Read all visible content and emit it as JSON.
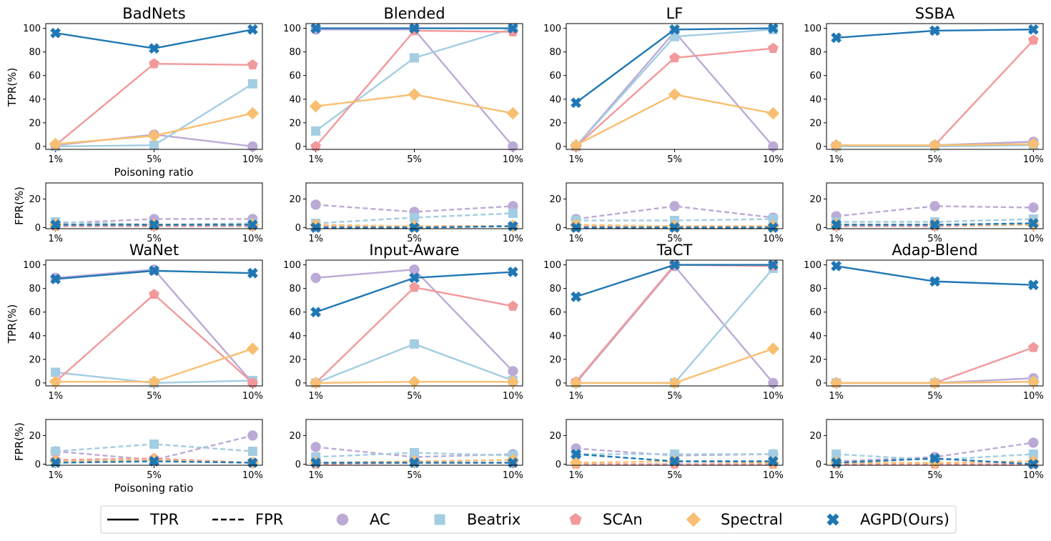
{
  "chart_data": {
    "type": "line",
    "categories": [
      "1%",
      "5%",
      "10%"
    ],
    "xlabel": "Poisoning ratio",
    "ylabel_tpr": "TPR(%)",
    "ylabel_fpr": "FPR(%)",
    "tpr_ylim": [
      0,
      100
    ],
    "tpr_yticks": [
      "0",
      "20",
      "40",
      "60",
      "80",
      "100"
    ],
    "fpr_ylim": [
      0,
      30
    ],
    "fpr_yticks": [
      "0",
      "20"
    ],
    "colors": {
      "AC": "#bcaad6",
      "Beatrix": "#a3cde3",
      "SCAn": "#f2999b",
      "Spectral": "#f8bf72",
      "AGPD(Ours)": "#1f77b4"
    },
    "legend": {
      "placement": "bottom-center",
      "items": [
        {
          "label": "TPR",
          "kind": "solid-line"
        },
        {
          "label": "FPR",
          "kind": "dashed-line"
        },
        {
          "label": "AC",
          "kind": "marker",
          "marker": "circle",
          "color": "#bcaad6"
        },
        {
          "label": "Beatrix",
          "kind": "marker",
          "marker": "square",
          "color": "#a3cde3"
        },
        {
          "label": "SCAn",
          "kind": "marker",
          "marker": "pentagon",
          "color": "#f2999b"
        },
        {
          "label": "Spectral",
          "kind": "marker",
          "marker": "diamond",
          "color": "#f8bf72"
        },
        {
          "label": "AGPD(Ours)",
          "kind": "marker",
          "marker": "x",
          "color": "#1f77b4"
        }
      ]
    },
    "panels": [
      {
        "title": "BadNets",
        "tpr": {
          "AC": [
            1,
            10,
            0
          ],
          "Beatrix": [
            0,
            1,
            53
          ],
          "SCAn": [
            1,
            70,
            69
          ],
          "Spectral": [
            2,
            9,
            28
          ],
          "AGPD(Ours)": [
            96,
            83,
            99
          ]
        },
        "fpr": {
          "AC": [
            3,
            6,
            6
          ],
          "Beatrix": [
            4,
            2,
            3
          ],
          "SCAn": [
            1,
            1,
            1
          ],
          "Spectral": [
            2,
            2,
            2
          ],
          "AGPD(Ours)": [
            2,
            2,
            2
          ]
        }
      },
      {
        "title": "Blended",
        "tpr": {
          "AC": [
            99,
            99,
            0
          ],
          "Beatrix": [
            13,
            75,
            100
          ],
          "SCAn": [
            0,
            98,
            97
          ],
          "Spectral": [
            34,
            44,
            28
          ],
          "AGPD(Ours)": [
            100,
            100,
            100
          ]
        },
        "fpr": {
          "AC": [
            16,
            11,
            15
          ],
          "Beatrix": [
            3,
            7,
            10
          ],
          "SCAn": [
            1,
            1,
            1
          ],
          "Spectral": [
            2,
            1,
            1
          ],
          "AGPD(Ours)": [
            0,
            0,
            1
          ]
        }
      },
      {
        "title": "LF",
        "tpr": {
          "AC": [
            0,
            97,
            0
          ],
          "Beatrix": [
            0,
            93,
            99
          ],
          "SCAn": [
            0,
            75,
            83
          ],
          "Spectral": [
            1,
            44,
            28
          ],
          "AGPD(Ours)": [
            37,
            99,
            100
          ]
        },
        "fpr": {
          "AC": [
            6,
            15,
            7
          ],
          "Beatrix": [
            5,
            5,
            6
          ],
          "SCAn": [
            1,
            1,
            1
          ],
          "Spectral": [
            2,
            1,
            1
          ],
          "AGPD(Ours)": [
            0,
            0,
            0
          ]
        }
      },
      {
        "title": "SSBA",
        "tpr": {
          "AC": [
            0,
            1,
            4
          ],
          "Beatrix": [
            0,
            0,
            1
          ],
          "SCAn": [
            1,
            1,
            90
          ],
          "Spectral": [
            1,
            1,
            2
          ],
          "AGPD(Ours)": [
            92,
            98,
            99
          ]
        },
        "fpr": {
          "AC": [
            8,
            15,
            14
          ],
          "Beatrix": [
            4,
            4,
            6
          ],
          "SCAn": [
            1,
            1,
            2
          ],
          "Spectral": [
            2,
            2,
            2
          ],
          "AGPD(Ours)": [
            2,
            2,
            3
          ]
        }
      },
      {
        "title": "WaNet",
        "tpr": {
          "AC": [
            89,
            96,
            0
          ],
          "Beatrix": [
            9,
            0,
            2
          ],
          "SCAn": [
            1,
            75,
            0
          ],
          "Spectral": [
            1,
            1,
            29
          ],
          "AGPD(Ours)": [
            88,
            95,
            93
          ]
        },
        "fpr": {
          "AC": [
            9,
            3,
            20
          ],
          "Beatrix": [
            9,
            14,
            9
          ],
          "SCAn": [
            3,
            4,
            1
          ],
          "Spectral": [
            2,
            3,
            1
          ],
          "AGPD(Ours)": [
            1,
            2,
            1
          ]
        }
      },
      {
        "title": "Input-Aware",
        "tpr": {
          "AC": [
            89,
            96,
            10
          ],
          "Beatrix": [
            0,
            33,
            2
          ],
          "SCAn": [
            0,
            81,
            65
          ],
          "Spectral": [
            0,
            1,
            1
          ],
          "AGPD(Ours)": [
            60,
            89,
            94
          ]
        },
        "fpr": {
          "AC": [
            12,
            5,
            7
          ],
          "Beatrix": [
            5,
            8,
            6
          ],
          "SCAn": [
            0,
            1,
            1
          ],
          "Spectral": [
            1,
            2,
            3
          ],
          "AGPD(Ours)": [
            1,
            1,
            1
          ]
        }
      },
      {
        "title": "TaCT",
        "tpr": {
          "AC": [
            0,
            99,
            0
          ],
          "Beatrix": [
            0,
            0,
            97
          ],
          "SCAn": [
            1,
            100,
            99
          ],
          "Spectral": [
            0,
            0,
            29
          ],
          "AGPD(Ours)": [
            73,
            100,
            100
          ]
        },
        "fpr": {
          "AC": [
            11,
            6,
            7
          ],
          "Beatrix": [
            7,
            7,
            7
          ],
          "SCAn": [
            0,
            0,
            0
          ],
          "Spectral": [
            1,
            2,
            1
          ],
          "AGPD(Ours)": [
            7,
            2,
            2
          ]
        }
      },
      {
        "title": "Adap-Blend",
        "tpr": {
          "AC": [
            0,
            0,
            4
          ],
          "Beatrix": [
            0,
            0,
            1
          ],
          "SCAn": [
            0,
            0,
            30
          ],
          "Spectral": [
            0,
            0,
            1
          ],
          "AGPD(Ours)": [
            99,
            86,
            83
          ]
        },
        "fpr": {
          "AC": [
            2,
            5,
            15
          ],
          "Beatrix": [
            7,
            3,
            7
          ],
          "SCAn": [
            0,
            0,
            0
          ],
          "Spectral": [
            1,
            1,
            2
          ],
          "AGPD(Ours)": [
            1,
            4,
            0
          ]
        }
      }
    ]
  }
}
